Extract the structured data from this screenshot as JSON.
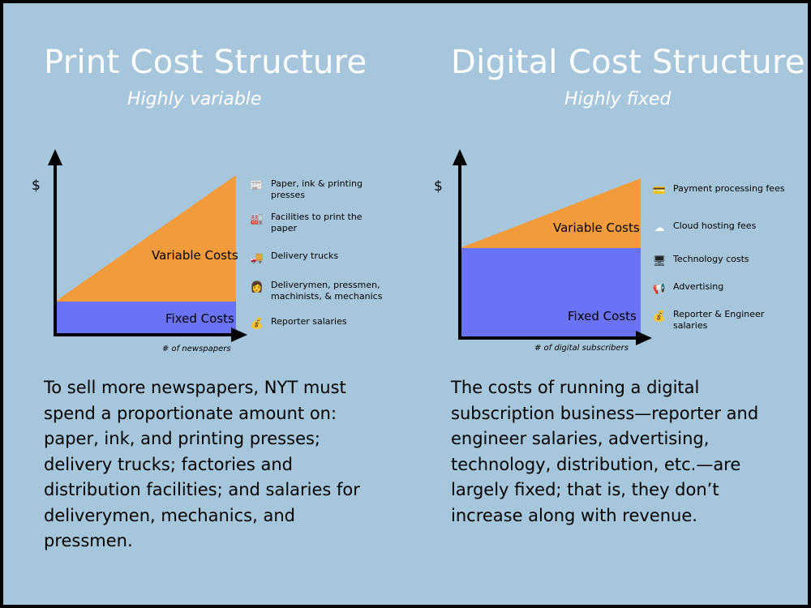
{
  "print": {
    "title": "Print Cost Structure",
    "subtitle": "Highly variable",
    "y_axis_label": "$",
    "x_axis_label": "# of newspapers",
    "variable_label": "Variable Costs",
    "fixed_label": "Fixed Costs",
    "legend": [
      {
        "icon": "newspaper-icon",
        "glyph": "📰",
        "color": "#7a7a7a",
        "label": "Paper, ink & printing presses"
      },
      {
        "icon": "factory-icon",
        "glyph": "🏭",
        "color": "#b5651d",
        "label": "Facilities to print the paper"
      },
      {
        "icon": "delivery-truck-icon",
        "glyph": "🚚",
        "color": "#e8622c",
        "label": "Delivery trucks"
      },
      {
        "icon": "worker-icon",
        "glyph": "👩",
        "color": "#3a3a3a",
        "label": "Deliverymen, pressmen, machinists, & mechanics"
      },
      {
        "icon": "money-bag-icon",
        "glyph": "💰",
        "color": "#c9a227",
        "label": "Reporter salaries"
      }
    ],
    "body": "To sell more newspapers, NYT must spend a proportionate amount on: paper, ink, and printing presses; delivery trucks; factories and distribution facilities; and salaries for deliverymen, mechanics, and pressmen."
  },
  "digital": {
    "title": "Digital Cost Structure",
    "subtitle": "Highly fixed",
    "y_axis_label": "$",
    "x_axis_label": "# of digital subscribers",
    "variable_label": "Variable Costs",
    "fixed_label": "Fixed Costs",
    "legend": [
      {
        "icon": "credit-card-icon",
        "glyph": "💳",
        "color": "#b08a3a",
        "label": "Payment processing fees"
      },
      {
        "icon": "cloud-icon",
        "glyph": "☁",
        "color": "#ffffff",
        "label": "Cloud hosting fees"
      },
      {
        "icon": "computer-icon",
        "glyph": "🖥",
        "color": "#222222",
        "label": "Technology costs"
      },
      {
        "icon": "megaphone-icon",
        "glyph": "📢",
        "color": "#8a8a8a",
        "label": "Advertising"
      },
      {
        "icon": "money-bag-icon",
        "glyph": "💰",
        "color": "#c9a227",
        "label": "Reporter & Engineer salaries"
      }
    ],
    "body": "The costs of running a digital subscription business—reporter and engineer salaries, advertising, technology, distribution, etc.—are largely fixed; that is, they don’t increase along with revenue."
  },
  "colors": {
    "background": "#a6c6dc",
    "variable": "#f29b3d",
    "fixed": "#6a73f5",
    "title": "#ffffff"
  }
}
